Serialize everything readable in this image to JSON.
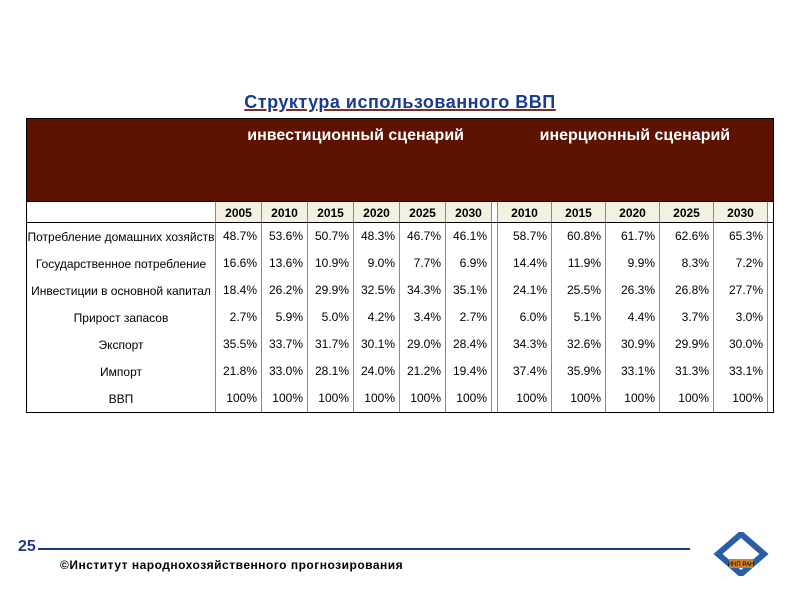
{
  "title": "Структура использованного ВВП",
  "scenario_a_label": "инвестиционный сценарий",
  "scenario_b_label": "инерционный сценарий",
  "colors": {
    "title_color": "#1a3c8c",
    "header_bg": "#5e1200",
    "header_text": "#ffffff",
    "year_bg": "#f5f0e0",
    "border": "#000000",
    "cell_border": "#888888",
    "footer_line": "#1a3c8c",
    "logo_fill": "#2a5fa8",
    "logo_label_bg": "#c88030"
  },
  "years_a": [
    "2005",
    "2010",
    "2015",
    "2020",
    "2025",
    "2030"
  ],
  "years_b": [
    "2010",
    "2015",
    "2020",
    "2025",
    "2030"
  ],
  "rows": [
    {
      "label": "Потребление домашних хозяйств",
      "a": [
        "48.7%",
        "53.6%",
        "50.7%",
        "48.3%",
        "46.7%",
        "46.1%"
      ],
      "b": [
        "58.7%",
        "60.8%",
        "61.7%",
        "62.6%",
        "65.3%"
      ]
    },
    {
      "label": "Государственное потребление",
      "a": [
        "16.6%",
        "13.6%",
        "10.9%",
        "9.0%",
        "7.7%",
        "6.9%"
      ],
      "b": [
        "14.4%",
        "11.9%",
        "9.9%",
        "8.3%",
        "7.2%"
      ]
    },
    {
      "label": "Инвестиции в основной капитал",
      "a": [
        "18.4%",
        "26.2%",
        "29.9%",
        "32.5%",
        "34.3%",
        "35.1%"
      ],
      "b": [
        "24.1%",
        "25.5%",
        "26.3%",
        "26.8%",
        "27.7%"
      ]
    },
    {
      "label": "Прирост запасов",
      "a": [
        "2.7%",
        "5.9%",
        "5.0%",
        "4.2%",
        "3.4%",
        "2.7%"
      ],
      "b": [
        "6.0%",
        "5.1%",
        "4.4%",
        "3.7%",
        "3.0%"
      ]
    },
    {
      "label": "Экспорт",
      "a": [
        "35.5%",
        "33.7%",
        "31.7%",
        "30.1%",
        "29.0%",
        "28.4%"
      ],
      "b": [
        "34.3%",
        "32.6%",
        "30.9%",
        "29.9%",
        "30.0%"
      ]
    },
    {
      "label": "Импорт",
      "a": [
        "21.8%",
        "33.0%",
        "28.1%",
        "24.0%",
        "21.2%",
        "19.4%"
      ],
      "b": [
        "37.4%",
        "35.9%",
        "33.1%",
        "31.3%",
        "33.1%"
      ]
    },
    {
      "label": "ВВП",
      "a": [
        "100%",
        "100%",
        "100%",
        "100%",
        "100%",
        "100%"
      ],
      "b": [
        "100%",
        "100%",
        "100%",
        "100%",
        "100%"
      ]
    }
  ],
  "page_number": "25",
  "copyright": "©Институт  народнохозяйственного  прогнозирования",
  "logo_label": "ИНП РАН"
}
